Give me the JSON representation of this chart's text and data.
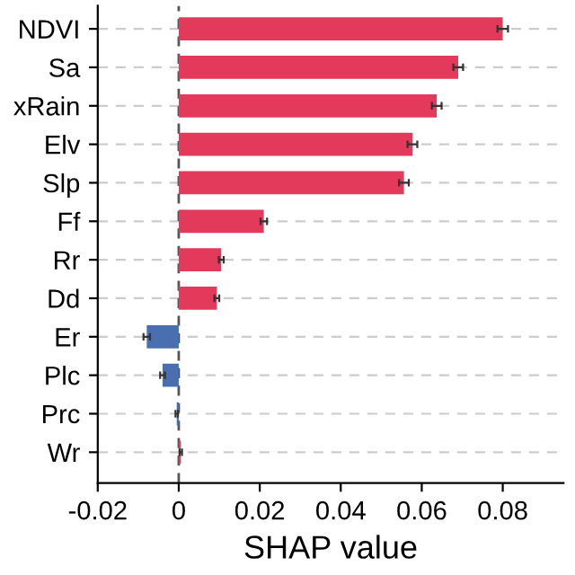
{
  "chart_data": {
    "type": "bar",
    "orientation": "horizontal",
    "xlabel": "SHAP value",
    "categories": [
      "NDVI",
      "Sa",
      "xRain",
      "Elv",
      "Slp",
      "Ff",
      "Rr",
      "Dd",
      "Er",
      "Plc",
      "Prc",
      "Wr"
    ],
    "values": [
      0.08,
      0.069,
      0.0637,
      0.0577,
      0.0556,
      0.021,
      0.0105,
      0.0094,
      -0.0079,
      -0.004,
      -0.0005,
      0.0005
    ],
    "errors": [
      0.0013,
      0.0012,
      0.0012,
      0.0012,
      0.0012,
      0.0008,
      0.0006,
      0.0006,
      0.0008,
      0.0006,
      0.0003,
      0.0003
    ],
    "colors": [
      "#e3395a",
      "#e3395a",
      "#e3395a",
      "#e3395a",
      "#e3395a",
      "#e3395a",
      "#e3395a",
      "#e3395a",
      "#4a6fb0",
      "#4a6fb0",
      "#4a6fb0",
      "#e3395a"
    ],
    "xlim": [
      -0.02,
      0.095
    ],
    "xticks": [
      -0.02,
      0,
      0.02,
      0.04,
      0.06,
      0.08
    ],
    "ref_lines": [
      {
        "axis": "x",
        "value": 0,
        "color": "#555555",
        "line_style": "dashed"
      }
    ],
    "grid": "y",
    "legend": false
  }
}
